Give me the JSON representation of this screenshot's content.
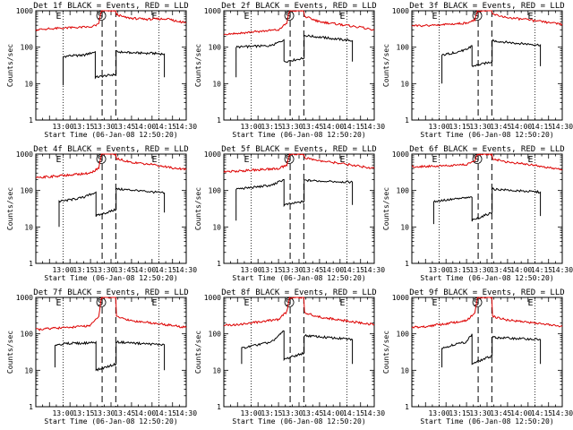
{
  "colors": {
    "events": "#000000",
    "lld": "#dd0000",
    "frame": "#000000",
    "background": "#ffffff"
  },
  "panel_titles": [
    "Det 1f BLACK = Events, RED = LLD",
    "Det 2f BLACK = Events, RED = LLD",
    "Det 3f BLACK = Events, RED = LLD",
    "Det 4f BLACK = Events, RED = LLD",
    "Det 5f BLACK = Events, RED = LLD",
    "Det 6f BLACK = Events, RED = LLD",
    "Det 7f BLACK = Events, RED = LLD",
    "Det 8f BLACK = Events, RED = LLD",
    "Det 9f BLACK = Events, RED = LLD"
  ],
  "x_label": "Start Time (06-Jan-08 12:50:20)",
  "y_label": "Counts/sec",
  "markers": {
    "start": "E",
    "saa": "S",
    "end": "E"
  },
  "chart_data": [
    {
      "type": "line",
      "title": "Det 1f BLACK = Events, RED = LLD",
      "xlabel": "Start Time (06-Jan-08 12:50:20)",
      "ylabel": "Counts/sec",
      "x_ticks": [
        "13:00",
        "13:15",
        "13:30",
        "13:45",
        "14:00",
        "14:15",
        "14:30"
      ],
      "y_ticks": [
        "1",
        "10",
        "100",
        "1000"
      ],
      "x_range_min": [
        -10,
        100
      ],
      "y_range": [
        1,
        1000
      ],
      "y_scale": "log",
      "grid": false,
      "vlines_dotted_min": [
        10,
        80
      ],
      "vlines_dashed_min": [
        38.5,
        48.5
      ],
      "series": [
        {
          "name": "Events",
          "color": "#000000",
          "x": [
            10,
            10,
            15,
            25,
            33.5,
            33.5,
            48.7,
            48.7,
            60,
            75,
            84,
            84
          ],
          "y": [
            9,
            55,
            58,
            60,
            75,
            15,
            18,
            75,
            70,
            68,
            65,
            15
          ]
        },
        {
          "name": "LLD",
          "color": "#dd0000",
          "x": [
            -10,
            0,
            15,
            30,
            36,
            38,
            48.5,
            49,
            55,
            70,
            85,
            95,
            100
          ],
          "y": [
            300,
            320,
            340,
            360,
            420,
            1000,
            1000,
            800,
            650,
            580,
            600,
            500,
            480
          ]
        }
      ]
    },
    {
      "type": "line",
      "title": "Det 2f BLACK = Events, RED = LLD",
      "xlabel": "Start Time (06-Jan-08 12:50:20)",
      "ylabel": "Counts/sec",
      "x_ticks": [
        "13:00",
        "13:15",
        "13:30",
        "13:45",
        "14:00",
        "14:15",
        "14:30"
      ],
      "y_ticks": [
        "1",
        "10",
        "100",
        "1000"
      ],
      "x_range_min": [
        -10,
        100
      ],
      "y_range": [
        1,
        1000
      ],
      "y_scale": "log",
      "grid": false,
      "vlines_dotted_min": [
        10,
        80
      ],
      "vlines_dashed_min": [
        38.5,
        48.5
      ],
      "series": [
        {
          "name": "Events",
          "color": "#000000",
          "x": [
            -1,
            -1,
            10,
            25,
            34,
            34,
            48.7,
            48.7,
            65,
            84,
            84
          ],
          "y": [
            15,
            100,
            105,
            110,
            160,
            40,
            50,
            210,
            180,
            150,
            40
          ]
        },
        {
          "name": "LLD",
          "color": "#dd0000",
          "x": [
            -10,
            0,
            15,
            30,
            36,
            38,
            48.5,
            49,
            60,
            75,
            90,
            100
          ],
          "y": [
            230,
            240,
            270,
            300,
            450,
            1000,
            1000,
            700,
            500,
            420,
            350,
            300
          ]
        }
      ]
    },
    {
      "type": "line",
      "title": "Det 3f BLACK = Events, RED = LLD",
      "xlabel": "Start Time (06-Jan-08 12:50:20)",
      "ylabel": "Counts/sec",
      "x_ticks": [
        "13:00",
        "13:15",
        "13:30",
        "13:45",
        "14:00",
        "14:15",
        "14:30"
      ],
      "y_ticks": [
        "1",
        "10",
        "100",
        "1000"
      ],
      "x_range_min": [
        -10,
        100
      ],
      "y_range": [
        1,
        1000
      ],
      "y_scale": "log",
      "grid": false,
      "vlines_dotted_min": [
        10,
        80
      ],
      "vlines_dashed_min": [
        38.5,
        48.5
      ],
      "series": [
        {
          "name": "Events",
          "color": "#000000",
          "x": [
            12,
            12,
            20,
            30,
            34,
            34,
            48.7,
            48.7,
            65,
            84,
            84
          ],
          "y": [
            10,
            60,
            70,
            85,
            110,
            30,
            40,
            150,
            130,
            115,
            30
          ]
        },
        {
          "name": "LLD",
          "color": "#dd0000",
          "x": [
            -10,
            0,
            15,
            30,
            36,
            38,
            48.5,
            49,
            60,
            75,
            90,
            100
          ],
          "y": [
            380,
            390,
            420,
            460,
            550,
            1000,
            1000,
            800,
            650,
            560,
            470,
            420
          ]
        }
      ]
    },
    {
      "type": "line",
      "title": "Det 4f BLACK = Events, RED = LLD",
      "xlabel": "Start Time (06-Jan-08 12:50:20)",
      "ylabel": "Counts/sec",
      "x_ticks": [
        "13:00",
        "13:15",
        "13:30",
        "13:45",
        "14:00",
        "14:15",
        "14:30"
      ],
      "y_ticks": [
        "1",
        "10",
        "100",
        "1000"
      ],
      "x_range_min": [
        -10,
        100
      ],
      "y_range": [
        1,
        1000
      ],
      "y_scale": "log",
      "grid": false,
      "vlines_dotted_min": [
        10,
        80
      ],
      "vlines_dashed_min": [
        38.5,
        48.5
      ],
      "series": [
        {
          "name": "Events",
          "color": "#000000",
          "x": [
            7,
            7,
            15,
            25,
            34,
            34,
            48.7,
            48.7,
            65,
            84,
            84
          ],
          "y": [
            10,
            50,
            55,
            65,
            90,
            20,
            30,
            110,
            100,
            85,
            25
          ]
        },
        {
          "name": "LLD",
          "color": "#dd0000",
          "x": [
            -10,
            0,
            15,
            30,
            36,
            38,
            48.5,
            49,
            60,
            75,
            90,
            100
          ],
          "y": [
            230,
            240,
            270,
            300,
            420,
            1000,
            1000,
            750,
            600,
            520,
            420,
            380
          ]
        }
      ]
    },
    {
      "type": "line",
      "title": "Det 5f BLACK = Events, RED = LLD",
      "xlabel": "Start Time (06-Jan-08 12:50:20)",
      "ylabel": "Counts/sec",
      "x_ticks": [
        "13:00",
        "13:15",
        "13:30",
        "13:45",
        "14:00",
        "14:15",
        "14:30"
      ],
      "y_ticks": [
        "1",
        "10",
        "100",
        "1000"
      ],
      "x_range_min": [
        -10,
        100
      ],
      "y_range": [
        1,
        1000
      ],
      "y_scale": "log",
      "grid": false,
      "vlines_dotted_min": [
        10,
        80
      ],
      "vlines_dashed_min": [
        38.5,
        48.5
      ],
      "series": [
        {
          "name": "Events",
          "color": "#000000",
          "x": [
            -1,
            -1,
            10,
            25,
            34,
            34,
            48.7,
            48.7,
            65,
            84,
            84
          ],
          "y": [
            15,
            110,
            120,
            140,
            200,
            40,
            50,
            190,
            180,
            170,
            40
          ]
        },
        {
          "name": "LLD",
          "color": "#dd0000",
          "x": [
            -10,
            0,
            15,
            30,
            36,
            38,
            48.5,
            49,
            60,
            75,
            90,
            100
          ],
          "y": [
            330,
            340,
            370,
            400,
            500,
            1000,
            1000,
            800,
            650,
            560,
            460,
            400
          ]
        }
      ]
    },
    {
      "type": "line",
      "title": "Det 6f BLACK = Events, RED = LLD",
      "xlabel": "Start Time (06-Jan-08 12:50:20)",
      "ylabel": "Counts/sec",
      "x_ticks": [
        "13:00",
        "13:15",
        "13:30",
        "13:45",
        "14:00",
        "14:15",
        "14:30"
      ],
      "y_ticks": [
        "1",
        "10",
        "100",
        "1000"
      ],
      "x_range_min": [
        -10,
        100
      ],
      "y_range": [
        1,
        1000
      ],
      "y_scale": "log",
      "grid": false,
      "vlines_dotted_min": [
        10,
        80
      ],
      "vlines_dashed_min": [
        38.5,
        48.5
      ],
      "series": [
        {
          "name": "Events",
          "color": "#000000",
          "x": [
            6,
            6,
            15,
            25,
            34,
            34,
            48.7,
            48.7,
            65,
            84,
            84
          ],
          "y": [
            12,
            50,
            55,
            60,
            65,
            15,
            25,
            110,
            100,
            90,
            20
          ]
        },
        {
          "name": "LLD",
          "color": "#dd0000",
          "x": [
            -10,
            0,
            15,
            30,
            36,
            38,
            48.5,
            49,
            60,
            75,
            90,
            100
          ],
          "y": [
            450,
            460,
            480,
            520,
            650,
            1000,
            1000,
            750,
            600,
            520,
            420,
            380
          ]
        }
      ]
    },
    {
      "type": "line",
      "title": "Det 7f BLACK = Events, RED = LLD",
      "xlabel": "Start Time (06-Jan-08 12:50:20)",
      "ylabel": "Counts/sec",
      "x_ticks": [
        "13:00",
        "13:15",
        "13:30",
        "13:45",
        "14:00",
        "14:15",
        "14:30"
      ],
      "y_ticks": [
        "1",
        "10",
        "100",
        "1000"
      ],
      "x_range_min": [
        -10,
        100
      ],
      "y_range": [
        1,
        1000
      ],
      "y_scale": "log",
      "grid": false,
      "vlines_dotted_min": [
        10,
        80
      ],
      "vlines_dashed_min": [
        38.5,
        48.5
      ],
      "series": [
        {
          "name": "Events",
          "color": "#000000",
          "x": [
            4,
            4,
            15,
            25,
            34,
            34,
            48.7,
            48.7,
            65,
            84,
            84
          ],
          "y": [
            12,
            50,
            55,
            55,
            60,
            10,
            15,
            60,
            55,
            50,
            10
          ]
        },
        {
          "name": "LLD",
          "color": "#dd0000",
          "x": [
            -10,
            0,
            15,
            30,
            36,
            38,
            48.5,
            49,
            60,
            75,
            90,
            100
          ],
          "y": [
            130,
            140,
            150,
            170,
            300,
            1000,
            1000,
            300,
            230,
            200,
            170,
            150
          ]
        }
      ]
    },
    {
      "type": "line",
      "title": "Det 8f BLACK = Events, RED = LLD",
      "xlabel": "Start Time (06-Jan-08 12:50:20)",
      "ylabel": "Counts/sec",
      "x_ticks": [
        "13:00",
        "13:15",
        "13:30",
        "13:45",
        "14:00",
        "14:15",
        "14:30"
      ],
      "y_ticks": [
        "1",
        "10",
        "100",
        "1000"
      ],
      "x_range_min": [
        -10,
        100
      ],
      "y_range": [
        1,
        1000
      ],
      "y_scale": "log",
      "grid": false,
      "vlines_dotted_min": [
        10,
        80
      ],
      "vlines_dashed_min": [
        38.5,
        48.5
      ],
      "series": [
        {
          "name": "Events",
          "color": "#000000",
          "x": [
            3,
            3,
            15,
            25,
            34,
            34,
            48.7,
            48.7,
            65,
            84,
            84
          ],
          "y": [
            15,
            40,
            50,
            60,
            120,
            20,
            30,
            90,
            80,
            70,
            15
          ]
        },
        {
          "name": "LLD",
          "color": "#dd0000",
          "x": [
            -10,
            0,
            15,
            30,
            36,
            38,
            48.5,
            49,
            60,
            75,
            90,
            100
          ],
          "y": [
            170,
            180,
            210,
            250,
            400,
            1000,
            1000,
            380,
            290,
            240,
            200,
            180
          ]
        }
      ]
    },
    {
      "type": "line",
      "title": "Det 9f BLACK = Events, RED = LLD",
      "xlabel": "Start Time (06-Jan-08 12:50:20)",
      "ylabel": "Counts/sec",
      "x_ticks": [
        "13:00",
        "13:15",
        "13:30",
        "13:45",
        "14:00",
        "14:15",
        "14:30"
      ],
      "y_ticks": [
        "1",
        "10",
        "100",
        "1000"
      ],
      "x_range_min": [
        -10,
        100
      ],
      "y_range": [
        1,
        1000
      ],
      "y_scale": "log",
      "grid": false,
      "vlines_dotted_min": [
        10,
        80
      ],
      "vlines_dashed_min": [
        38.5,
        48.5
      ],
      "series": [
        {
          "name": "Events",
          "color": "#000000",
          "x": [
            12,
            12,
            20,
            30,
            34,
            34,
            48.7,
            48.7,
            65,
            84,
            84
          ],
          "y": [
            12,
            40,
            50,
            60,
            100,
            15,
            25,
            80,
            75,
            70,
            15
          ]
        },
        {
          "name": "LLD",
          "color": "#dd0000",
          "x": [
            -10,
            0,
            15,
            30,
            36,
            38,
            48.5,
            49,
            60,
            75,
            90,
            100
          ],
          "y": [
            150,
            160,
            190,
            230,
            380,
            1000,
            1000,
            300,
            240,
            210,
            180,
            160
          ]
        }
      ]
    }
  ]
}
